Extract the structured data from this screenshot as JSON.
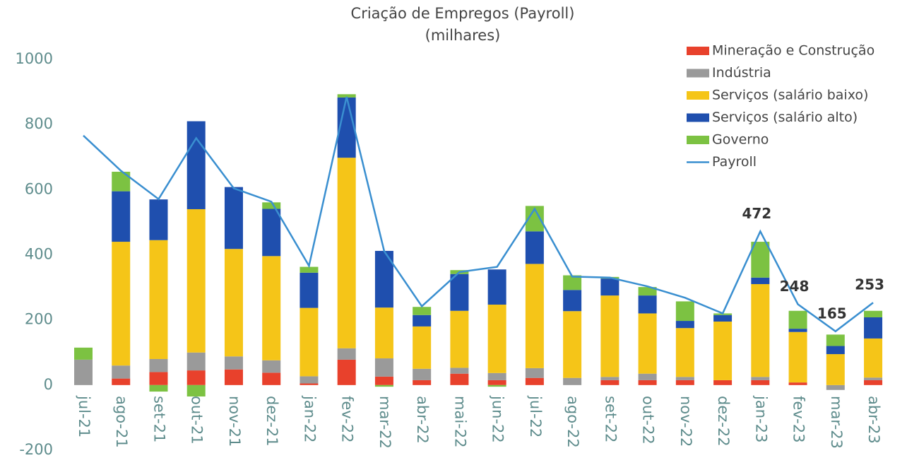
{
  "chart_data": {
    "type": "stacked_bar_line",
    "title": "Criação de Empregos (Payroll)",
    "subtitle": "(milhares)",
    "categories": [
      "jul-21",
      "ago-21",
      "set-21",
      "out-21",
      "nov-21",
      "dez-21",
      "jan-22",
      "fev-22",
      "mar-22",
      "abr-22",
      "mai-22",
      "jun-22",
      "jul-22",
      "ago-22",
      "set-22",
      "out-22",
      "nov-22",
      "dez-22",
      "jan-23",
      "fev-23",
      "mar-23",
      "abr-23"
    ],
    "series": [
      {
        "name": "Mineração e Construção",
        "color": "#e8412c",
        "values": [
          0,
          20,
          40,
          45,
          48,
          38,
          5,
          78,
          26,
          15,
          35,
          15,
          22,
          0,
          15,
          15,
          15,
          15,
          15,
          8,
          0,
          15
        ]
      },
      {
        "name": "Indústria",
        "color": "#9a9a9a",
        "values": [
          78,
          40,
          40,
          55,
          40,
          38,
          22,
          35,
          56,
          35,
          18,
          22,
          30,
          22,
          10,
          20,
          10,
          0,
          10,
          0,
          -15,
          8
        ]
      },
      {
        "name": "Serviços (salário baixo)",
        "color": "#f5c518",
        "values": [
          0,
          380,
          365,
          440,
          330,
          320,
          210,
          585,
          156,
          130,
          175,
          210,
          320,
          205,
          250,
          185,
          150,
          180,
          285,
          155,
          95,
          120
        ]
      },
      {
        "name": "Serviços (salário alto)",
        "color": "#1f4fae",
        "values": [
          0,
          155,
          125,
          270,
          190,
          145,
          108,
          185,
          174,
          35,
          113,
          108,
          100,
          65,
          52,
          55,
          22,
          20,
          20,
          10,
          25,
          65
        ]
      },
      {
        "name": "Governo",
        "color": "#7cc242",
        "values": [
          37,
          60,
          -20,
          -35,
          0,
          20,
          18,
          10,
          -5,
          25,
          12,
          -5,
          78,
          45,
          5,
          26,
          60,
          5,
          110,
          55,
          35,
          20
        ]
      },
      {
        "name": "Payroll",
        "color": "#3a8fd0",
        "kind": "line",
        "values": [
          766,
          658,
          571,
          758,
          604,
          563,
          366,
          885,
          411,
          242,
          347,
          363,
          541,
          333,
          330,
          303,
          268,
          220,
          472,
          248,
          165,
          253
        ],
        "value_labels": [
          null,
          null,
          null,
          null,
          null,
          null,
          null,
          null,
          null,
          null,
          null,
          null,
          null,
          null,
          null,
          null,
          null,
          null,
          "472",
          "248",
          "165",
          "253"
        ]
      }
    ],
    "ylim": [
      -200,
      1000
    ],
    "yticks": [
      -200,
      0,
      200,
      400,
      600,
      800,
      1000
    ],
    "grid": false,
    "legend": "top-right"
  }
}
